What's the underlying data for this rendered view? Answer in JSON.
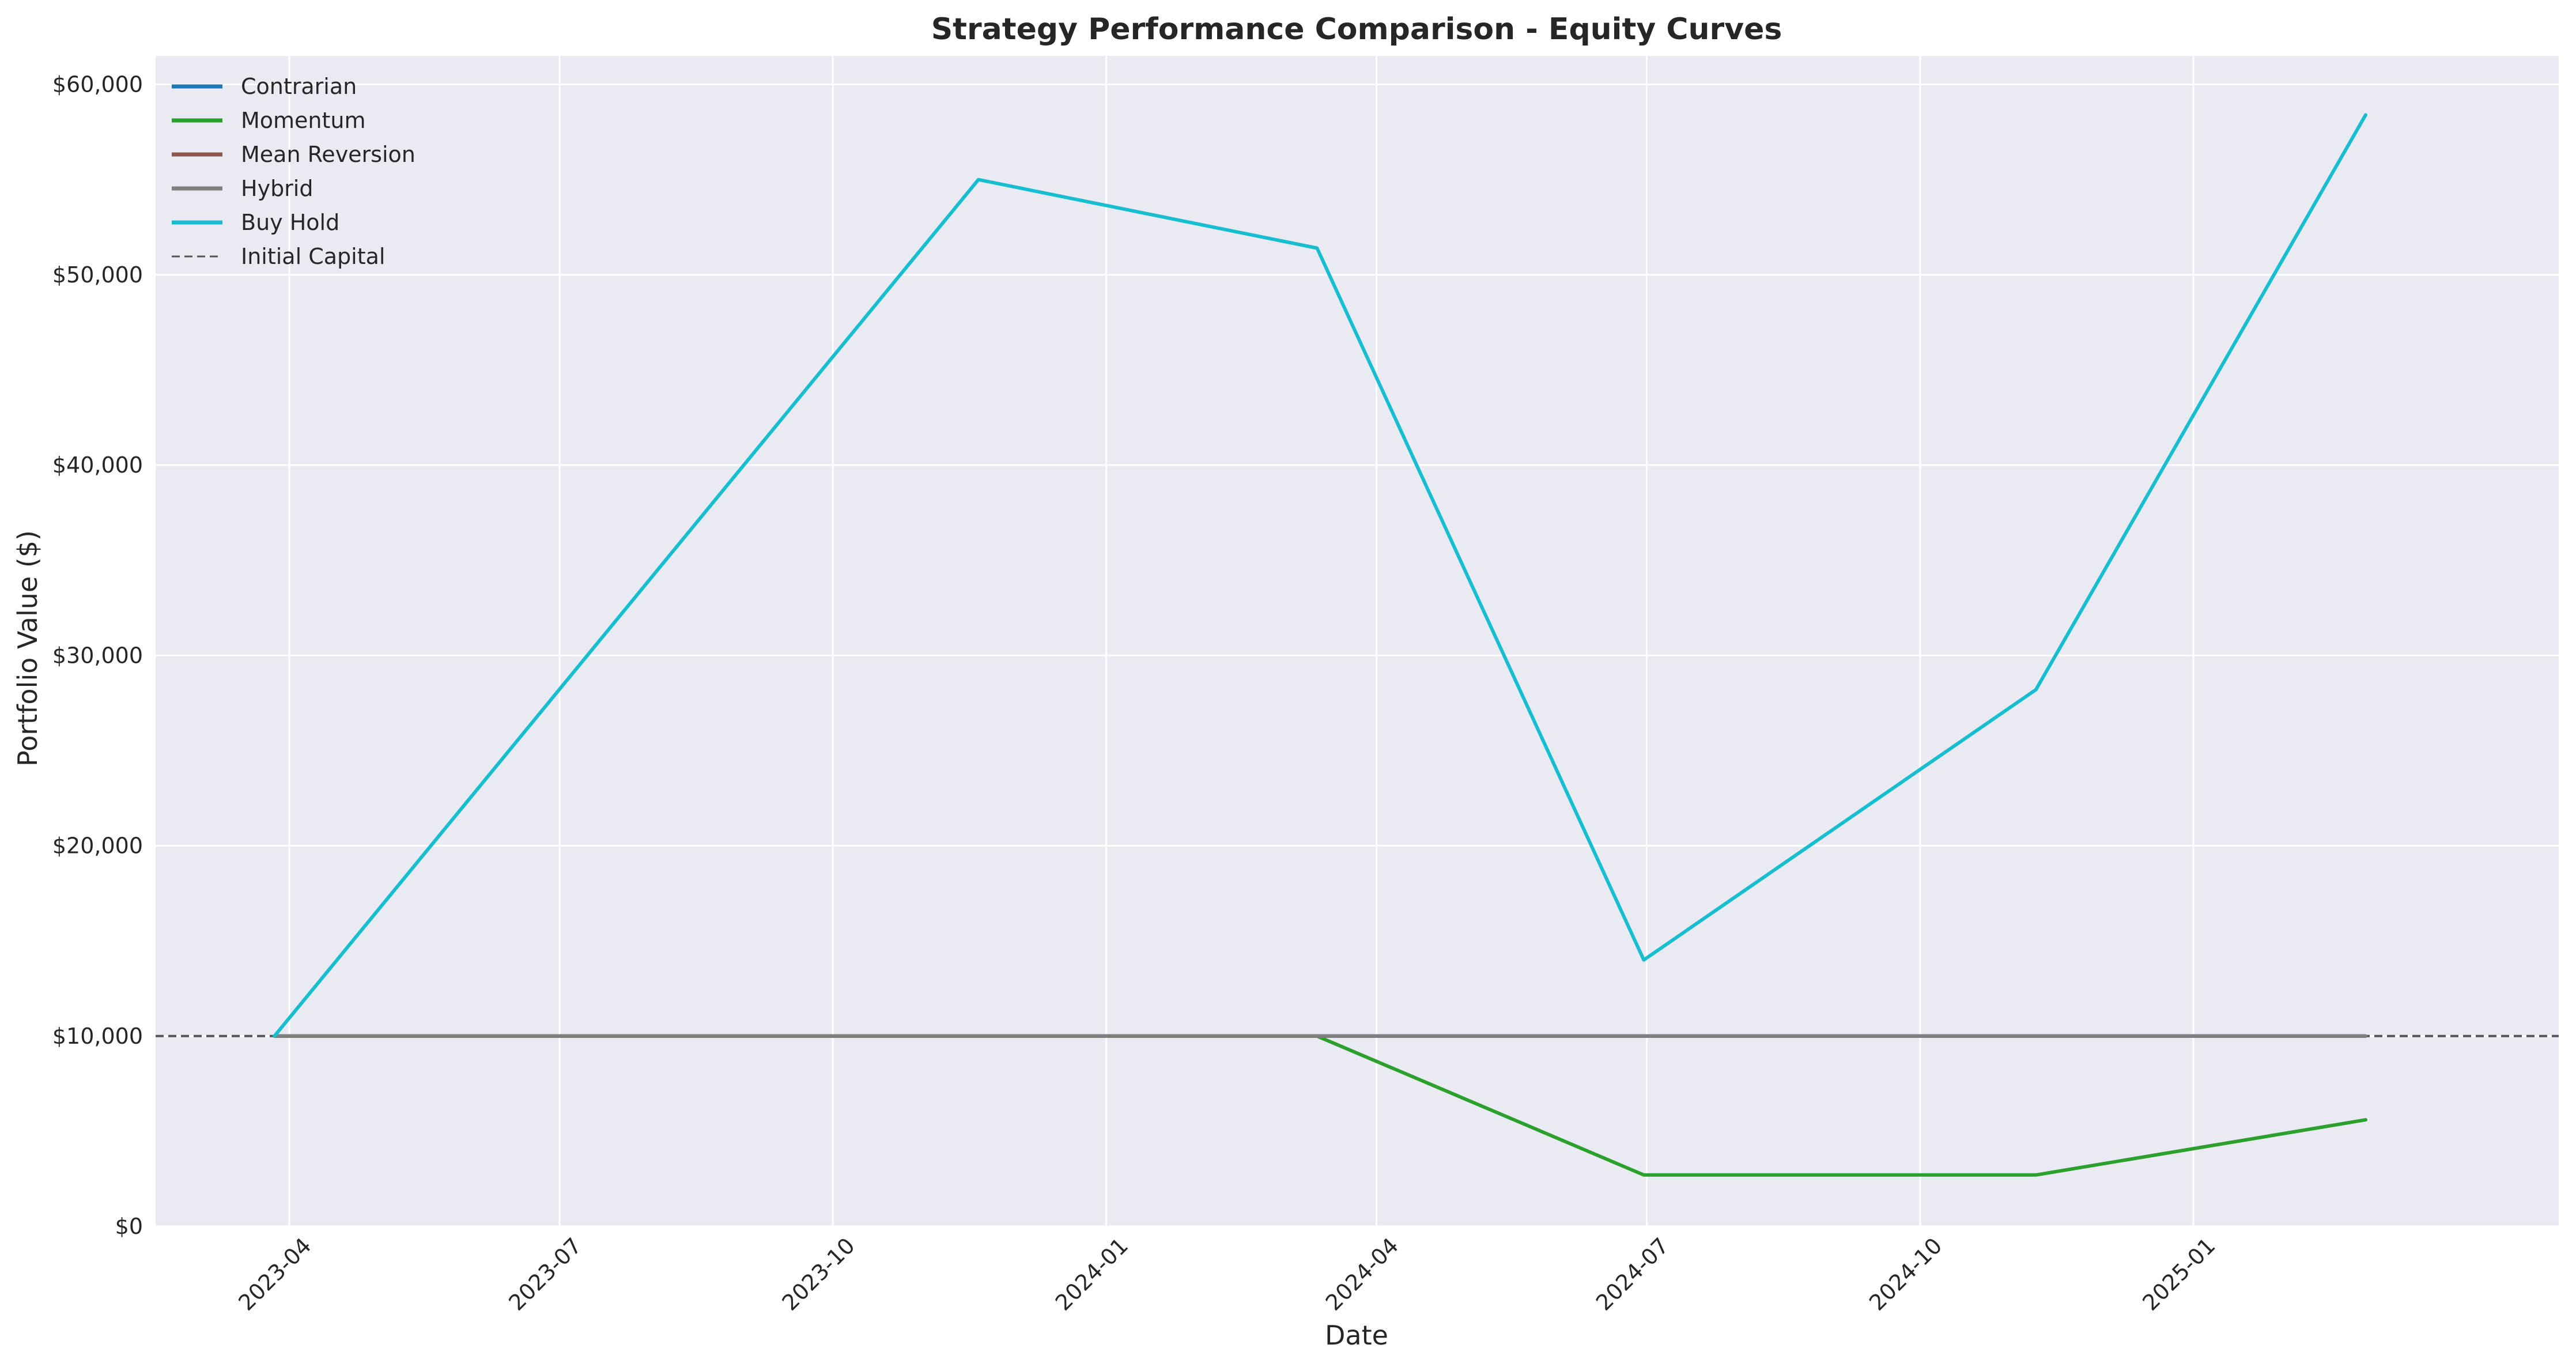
{
  "chart_data": {
    "type": "line",
    "title": "Strategy Performance Comparison - Equity Curves",
    "xlabel": "Date",
    "ylabel": "Portfolio Value ($)",
    "x_axis_type": "date",
    "xlim": [
      "2023-02-15",
      "2025-05-04"
    ],
    "ylim": [
      0,
      61500
    ],
    "grid": true,
    "legend_position": "top-left",
    "x_ticks": [
      {
        "date": "2023-04-01",
        "label": "2023-04"
      },
      {
        "date": "2023-07-01",
        "label": "2023-07"
      },
      {
        "date": "2023-10-01",
        "label": "2023-10"
      },
      {
        "date": "2024-01-01",
        "label": "2024-01"
      },
      {
        "date": "2024-04-01",
        "label": "2024-04"
      },
      {
        "date": "2024-07-01",
        "label": "2024-07"
      },
      {
        "date": "2024-10-01",
        "label": "2024-10"
      },
      {
        "date": "2025-01-01",
        "label": "2025-01"
      }
    ],
    "y_ticks": [
      {
        "value": 0,
        "label": "$0"
      },
      {
        "value": 10000,
        "label": "$10,000"
      },
      {
        "value": 20000,
        "label": "$20,000"
      },
      {
        "value": 30000,
        "label": "$30,000"
      },
      {
        "value": 40000,
        "label": "$40,000"
      },
      {
        "value": 50000,
        "label": "$50,000"
      },
      {
        "value": 60000,
        "label": "$60,000"
      }
    ],
    "x": [
      "2023-03-27",
      "2023-11-19",
      "2024-03-12",
      "2024-06-30",
      "2024-11-09",
      "2025-02-28"
    ],
    "series": [
      {
        "name": "Contrarian",
        "color": "#1f77b4",
        "values": [
          10000,
          10000,
          10000,
          10000,
          10000,
          10000
        ]
      },
      {
        "name": "Momentum",
        "color": "#2ca02c",
        "values": [
          10000,
          10000,
          10000,
          2700,
          2700,
          5600
        ]
      },
      {
        "name": "Mean Reversion",
        "color": "#8c564b",
        "values": [
          10000,
          10000,
          10000,
          10000,
          10000,
          10000
        ]
      },
      {
        "name": "Hybrid",
        "color": "#7f7f7f",
        "values": [
          10000,
          10000,
          10000,
          10000,
          10000,
          10000
        ]
      },
      {
        "name": "Buy Hold",
        "color": "#17becf",
        "values": [
          10000,
          55000,
          51400,
          14000,
          28200,
          58400
        ]
      }
    ],
    "reference_lines": [
      {
        "name": "Initial Capital",
        "value": 10000,
        "color": "#555555",
        "style": "dashed"
      }
    ],
    "colors": {
      "plot_background": "#eaeaf2",
      "grid": "#ffffff",
      "text": "#262626"
    }
  }
}
